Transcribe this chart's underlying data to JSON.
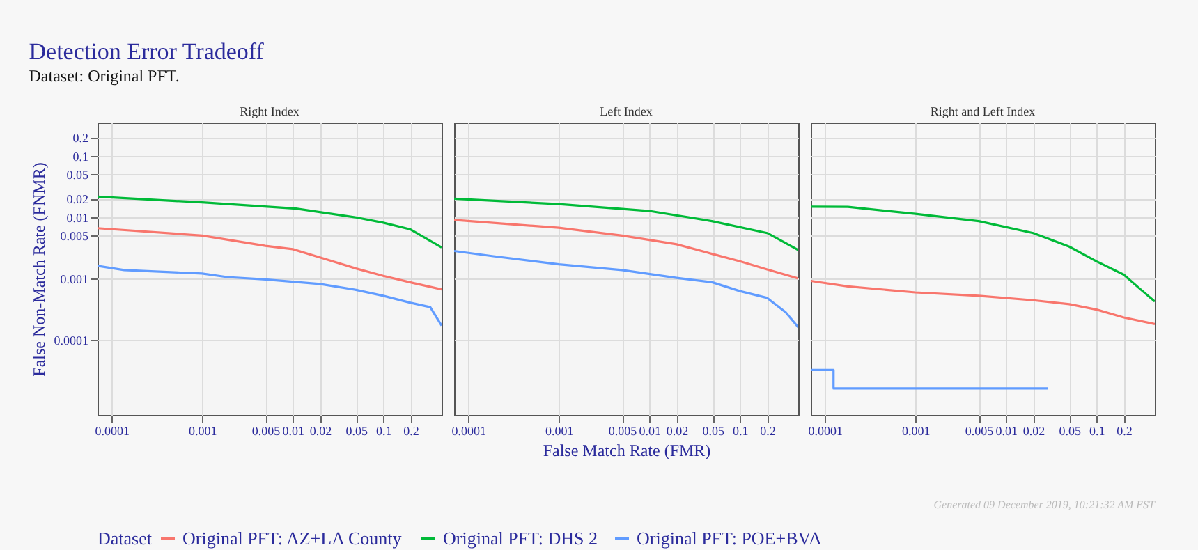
{
  "chart_data": [
    {
      "type": "other",
      "title": "Detection Error Tradeoff",
      "subtitle": "Dataset: Original PFT."
    },
    {
      "type": "line",
      "title": "Right Index",
      "ylabel": "False Non-Match Rate (FNMR)",
      "log": "xy",
      "grid": true,
      "tick_labels": "xy",
      "legend": "bottom",
      "xlim": [
        7e-05,
        0.44
      ],
      "ylim": [
        5.9e-06,
        0.35
      ],
      "xticks": [
        0.0001,
        0.001,
        0.005,
        0.01,
        0.02,
        0.05,
        0.1,
        0.2
      ],
      "yticks": [
        0.0001,
        0.001,
        0.005,
        0.01,
        0.02,
        0.05,
        0.1,
        0.2
      ],
      "series": [
        {
          "name": "Original PFT: AZ+LA County",
          "color": "#f8766d",
          "x": [
            7e-05,
            0.001,
            0.005,
            0.01,
            0.02,
            0.05,
            0.1,
            0.2,
            0.44
          ],
          "values": [
            0.0066,
            0.005,
            0.0034,
            0.003,
            0.0022,
            0.00145,
            0.0011,
            0.00086,
            0.00066
          ]
        },
        {
          "name": "Original PFT: DHS 2",
          "color": "#00ba38",
          "x": [
            7e-05,
            0.001,
            0.0109,
            0.05,
            0.1,
            0.2,
            0.44
          ],
          "values": [
            0.0216,
            0.0174,
            0.0138,
            0.0099,
            0.0081,
            0.0063,
            0.0032
          ]
        },
        {
          "name": "Original PFT: POE+BVA",
          "color": "#619cff",
          "x": [
            7e-05,
            0.000138,
            0.001,
            0.0019,
            0.005,
            0.02,
            0.05,
            0.1,
            0.2,
            0.33,
            0.44
          ],
          "values": [
            0.0016,
            0.00137,
            0.0012,
            0.00105,
            0.00096,
            0.00081,
            0.00065,
            0.00052,
            0.0004,
            0.00034,
            0.00017
          ]
        }
      ]
    },
    {
      "type": "line",
      "title": "Left Index",
      "xlabel": "False Match Rate (FMR)",
      "log": "xy",
      "grid": true,
      "tick_labels": "x",
      "legend": "bottom",
      "legend_title": "Dataset",
      "xlim": [
        7e-05,
        0.44
      ],
      "ylim": [
        5.9e-06,
        0.35
      ],
      "xticks": [
        0.0001,
        0.001,
        0.005,
        0.01,
        0.02,
        0.05,
        0.1,
        0.2
      ],
      "yticks": [
        0.0001,
        0.001,
        0.005,
        0.01,
        0.02,
        0.05,
        0.1,
        0.2
      ],
      "series": [
        {
          "name": "Original PFT: AZ+LA County",
          "color": "#f8766d",
          "x": [
            7e-05,
            0.001,
            0.005,
            0.02,
            0.05,
            0.1,
            0.2,
            0.44
          ],
          "values": [
            0.009,
            0.0067,
            0.005,
            0.0036,
            0.0025,
            0.0019,
            0.0014,
            0.001
          ]
        },
        {
          "name": "Original PFT: DHS 2",
          "color": "#00ba38",
          "x": [
            7e-05,
            0.001,
            0.01,
            0.049,
            0.2,
            0.44
          ],
          "values": [
            0.02,
            0.0163,
            0.0126,
            0.0086,
            0.0055,
            0.0029
          ]
        },
        {
          "name": "Original PFT: POE+BVA",
          "color": "#619cff",
          "x": [
            7e-05,
            0.00019,
            0.001,
            0.005,
            0.02,
            0.05,
            0.1,
            0.2,
            0.32,
            0.44
          ],
          "values": [
            0.0028,
            0.0023,
            0.0017,
            0.00137,
            0.00102,
            0.00086,
            0.00062,
            0.00048,
            0.00028,
            0.00016
          ]
        }
      ]
    },
    {
      "type": "line",
      "title": "Right and Left Index",
      "log": "xy",
      "grid": true,
      "tick_labels": "x",
      "legend": "bottom",
      "annotations": [
        "Generated 09 December 2019, 10:21:32 AM EST"
      ],
      "xlim": [
        7e-05,
        0.44
      ],
      "ylim": [
        5.9e-06,
        0.35
      ],
      "xticks": [
        0.0001,
        0.001,
        0.005,
        0.01,
        0.02,
        0.05,
        0.1,
        0.2
      ],
      "yticks": [
        0.0001,
        0.001,
        0.005,
        0.01,
        0.02,
        0.05,
        0.1,
        0.2
      ],
      "series": [
        {
          "name": "Original PFT: AZ+LA County",
          "color": "#f8766d",
          "x": [
            7e-05,
            0.00018,
            0.001,
            0.005,
            0.02,
            0.05,
            0.1,
            0.2,
            0.44
          ],
          "values": [
            0.00091,
            0.00074,
            0.00059,
            0.00052,
            0.00044,
            0.00038,
            0.00031,
            0.00023,
            0.00018
          ]
        },
        {
          "name": "Original PFT: DHS 2",
          "color": "#00ba38",
          "x": [
            7e-05,
            0.00018,
            0.001,
            0.005,
            0.02,
            0.05,
            0.1,
            0.2,
            0.3,
            0.44
          ],
          "values": [
            0.0148,
            0.0147,
            0.0113,
            0.0086,
            0.0055,
            0.0033,
            0.0019,
            0.00115,
            0.00068,
            0.00042
          ]
        },
        {
          "name": "Original PFT: POE+BVA",
          "color": "#619cff",
          "type": "step",
          "x": [
            7e-05,
            0.000125,
            0.029
          ],
          "values": [
            3.2e-05,
            1.6e-05,
            1.6e-05
          ]
        }
      ]
    }
  ]
}
